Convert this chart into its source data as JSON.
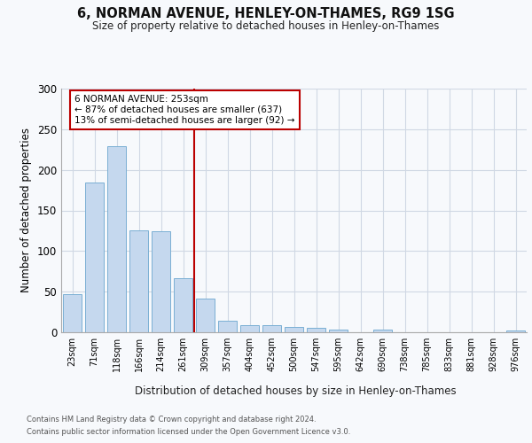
{
  "title": "6, NORMAN AVENUE, HENLEY-ON-THAMES, RG9 1SG",
  "subtitle": "Size of property relative to detached houses in Henley-on-Thames",
  "xlabel": "Distribution of detached houses by size in Henley-on-Thames",
  "ylabel": "Number of detached properties",
  "categories": [
    "23sqm",
    "71sqm",
    "118sqm",
    "166sqm",
    "214sqm",
    "261sqm",
    "309sqm",
    "357sqm",
    "404sqm",
    "452sqm",
    "500sqm",
    "547sqm",
    "595sqm",
    "642sqm",
    "690sqm",
    "738sqm",
    "785sqm",
    "833sqm",
    "881sqm",
    "928sqm",
    "976sqm"
  ],
  "values": [
    47,
    184,
    229,
    125,
    124,
    67,
    41,
    14,
    9,
    9,
    7,
    5,
    3,
    0,
    3,
    0,
    0,
    0,
    0,
    0,
    2
  ],
  "bar_color": "#c5d8ee",
  "bar_edgecolor": "#7aafd4",
  "background_color": "#f7f9fc",
  "grid_color": "#d0d8e4",
  "vline_x": 5.5,
  "vline_color": "#bb0000",
  "annotation_text": "6 NORMAN AVENUE: 253sqm\n← 87% of detached houses are smaller (637)\n13% of semi-detached houses are larger (92) →",
  "annotation_box_edgecolor": "#bb0000",
  "ylim": [
    0,
    300
  ],
  "yticks": [
    0,
    50,
    100,
    150,
    200,
    250,
    300
  ],
  "footnote1": "Contains HM Land Registry data © Crown copyright and database right 2024.",
  "footnote2": "Contains public sector information licensed under the Open Government Licence v3.0."
}
